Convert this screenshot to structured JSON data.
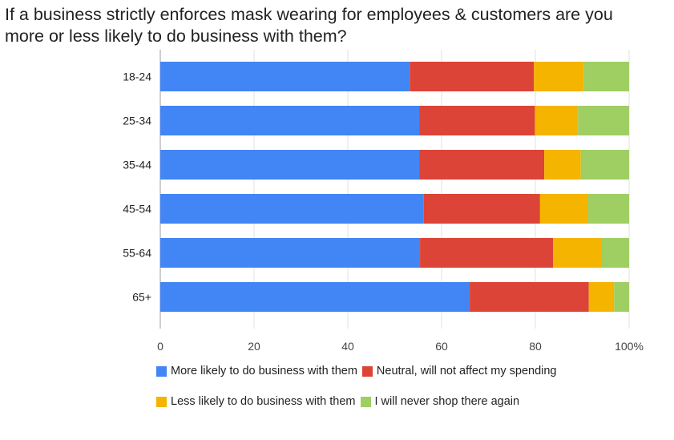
{
  "title_lines": [
    "If a business strictly enforces mask wearing for employees & customers are you",
    "more or less likely to do business with them?"
  ],
  "chart_data": {
    "type": "bar",
    "orientation": "horizontal",
    "stacked": true,
    "title": "If a business strictly enforces mask wearing for employees & customers are you more or less likely to do business with them?",
    "categories": [
      "18-24",
      "25-34",
      "35-44",
      "45-54",
      "55-64",
      "65+"
    ],
    "series": [
      {
        "name": "More likely to do business with them",
        "color": "#4285F4",
        "values": [
          53.2,
          55.3,
          55.3,
          56.2,
          55.4,
          66.0
        ]
      },
      {
        "name": "Neutral, will not affect my spending",
        "color": "#DB4437",
        "values": [
          26.5,
          24.6,
          26.6,
          24.8,
          28.4,
          25.4
        ]
      },
      {
        "name": "Less likely to do business with them",
        "color": "#F4B400",
        "values": [
          10.6,
          9.2,
          7.8,
          10.2,
          10.3,
          5.4
        ]
      },
      {
        "name": "I will never shop there again",
        "color": "#9FCE63",
        "values": [
          9.7,
          10.9,
          10.3,
          8.8,
          5.9,
          3.2
        ]
      }
    ],
    "xlim": [
      0,
      100
    ],
    "x_ticks": [
      "0",
      "20",
      "40",
      "60",
      "80",
      "100%"
    ],
    "grid": true,
    "legend_position": "bottom"
  }
}
